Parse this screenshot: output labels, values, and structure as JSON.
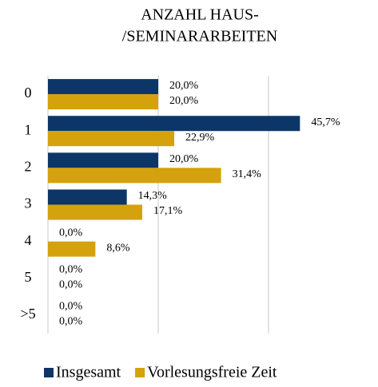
{
  "chart_data": {
    "type": "hbar",
    "title": [
      "ANZAHL HAUS-",
      "/SEMINARARBEITEN"
    ],
    "categories": [
      "0",
      "1",
      "2",
      "3",
      "4",
      "5",
      ">5"
    ],
    "series": [
      {
        "name": "Insgesamt",
        "color": "#0d3668",
        "values": [
          20.0,
          45.7,
          20.0,
          14.3,
          0.0,
          0.0,
          0.0
        ],
        "value_labels": [
          "20,0%",
          "45,7%",
          "20,0%",
          "14,3%",
          "0,0%",
          "0,0%",
          "0,0%"
        ]
      },
      {
        "name": "Vorlesungsfreie Zeit",
        "color": "#d4a20c",
        "values": [
          20.0,
          22.9,
          31.4,
          17.1,
          8.6,
          0.0,
          0.0
        ],
        "value_labels": [
          "20,0%",
          "22,9%",
          "31,4%",
          "17,1%",
          "8,6%",
          "0,0%",
          "0,0%"
        ]
      }
    ],
    "xlim": [
      0,
      60
    ],
    "xticks": [
      0,
      20,
      40
    ],
    "grid": true,
    "legend": "bottom"
  }
}
